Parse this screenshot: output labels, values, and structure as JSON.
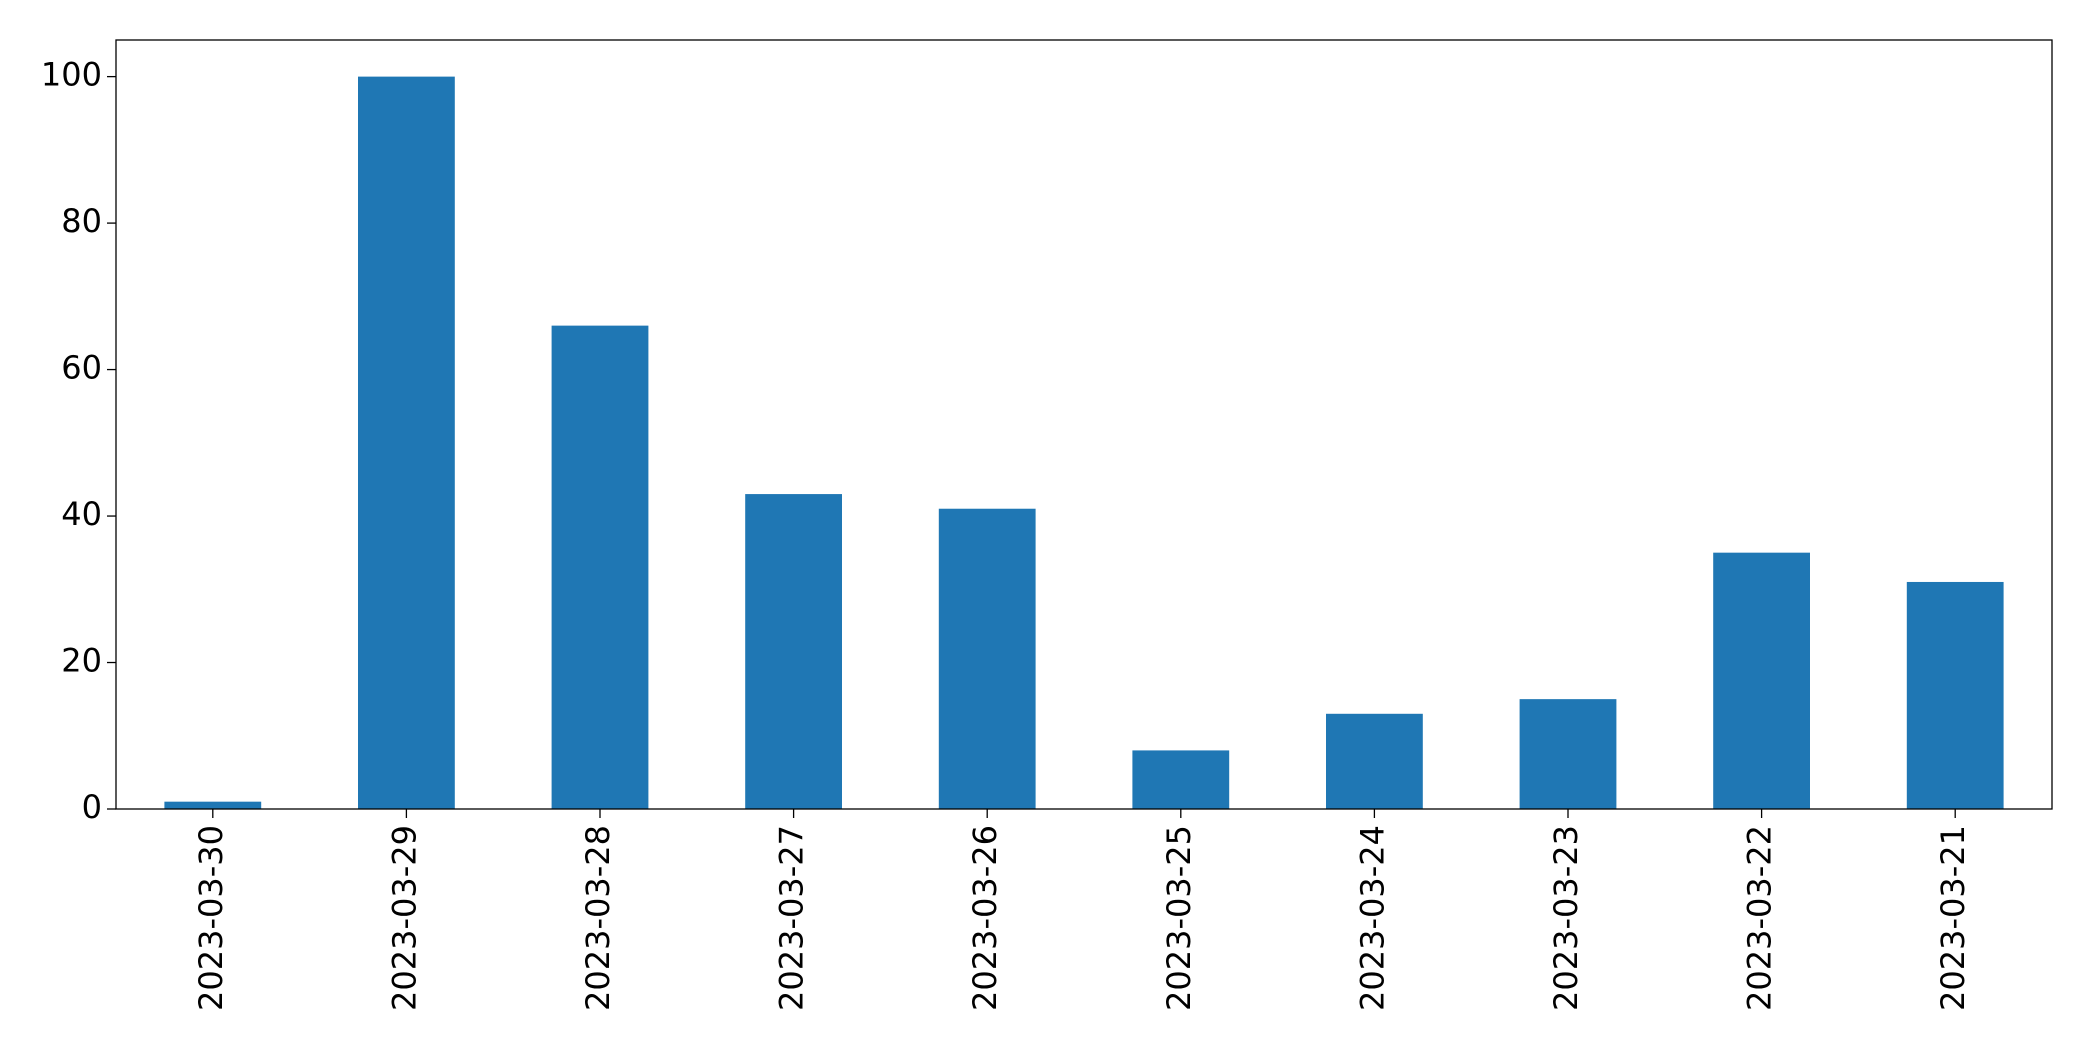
{
  "chart_data": {
    "type": "bar",
    "categories": [
      "2023-03-30",
      "2023-03-29",
      "2023-03-28",
      "2023-03-27",
      "2023-03-26",
      "2023-03-25",
      "2023-03-24",
      "2023-03-23",
      "2023-03-22",
      "2023-03-21"
    ],
    "values": [
      1,
      100,
      66,
      43,
      41,
      8,
      13,
      15,
      35,
      31
    ],
    "color": "#1f77b4",
    "ylim": [
      0,
      105
    ],
    "yticks": [
      0,
      20,
      40,
      60,
      80,
      100
    ],
    "grid": false
  }
}
